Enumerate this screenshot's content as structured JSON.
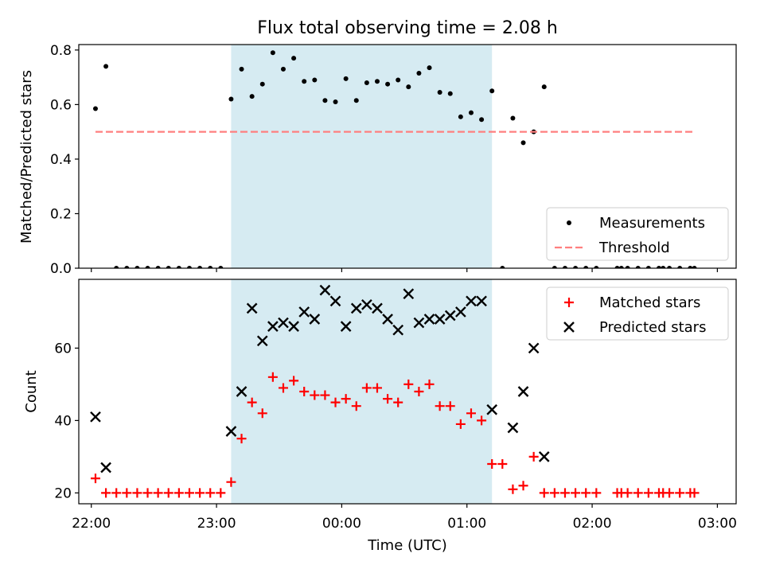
{
  "chart_data": [
    {
      "type": "scatter",
      "title": "Flux total observing time = 2.08 h",
      "xlabel": "",
      "ylabel": "Matched/Predicted stars",
      "xlim": [
        "21:54",
        "03:09"
      ],
      "ylim": [
        0,
        0.82
      ],
      "xticks": [
        "22:00",
        "23:00",
        "00:00",
        "01:00",
        "02:00",
        "03:00"
      ],
      "yticks": [
        "0.0",
        "0.2",
        "0.4",
        "0.6",
        "0.8"
      ],
      "shaded_region": {
        "start": "23:07",
        "end": "01:12",
        "color": "#add8e6"
      },
      "legend": {
        "position": "lower-right",
        "entries": [
          "Measurements",
          "Threshold"
        ]
      },
      "series": [
        {
          "name": "Measurements",
          "marker": "dot",
          "color": "#000000",
          "points": [
            [
              "22:02",
              0.585
            ],
            [
              "22:07",
              0.74
            ],
            [
              "22:12",
              0.0
            ],
            [
              "22:17",
              0.0
            ],
            [
              "22:22",
              0.0
            ],
            [
              "22:27",
              0.0
            ],
            [
              "22:32",
              0.0
            ],
            [
              "22:37",
              0.0
            ],
            [
              "22:42",
              0.0
            ],
            [
              "22:47",
              0.0
            ],
            [
              "22:52",
              0.0
            ],
            [
              "22:57",
              0.0
            ],
            [
              "23:02",
              0.0
            ],
            [
              "23:07",
              0.62
            ],
            [
              "23:12",
              0.73
            ],
            [
              "23:17",
              0.63
            ],
            [
              "23:22",
              0.675
            ],
            [
              "23:27",
              0.79
            ],
            [
              "23:32",
              0.73
            ],
            [
              "23:37",
              0.77
            ],
            [
              "23:42",
              0.685
            ],
            [
              "23:47",
              0.69
            ],
            [
              "23:52",
              0.615
            ],
            [
              "23:57",
              0.61
            ],
            [
              "00:02",
              0.695
            ],
            [
              "00:07",
              0.615
            ],
            [
              "00:12",
              0.68
            ],
            [
              "00:17",
              0.685
            ],
            [
              "00:22",
              0.675
            ],
            [
              "00:27",
              0.69
            ],
            [
              "00:32",
              0.665
            ],
            [
              "00:37",
              0.715
            ],
            [
              "00:42",
              0.735
            ],
            [
              "00:47",
              0.645
            ],
            [
              "00:52",
              0.64
            ],
            [
              "00:57",
              0.555
            ],
            [
              "01:02",
              0.57
            ],
            [
              "01:07",
              0.545
            ],
            [
              "01:12",
              0.65
            ],
            [
              "01:17",
              0.0
            ],
            [
              "01:22",
              0.55
            ],
            [
              "01:27",
              0.46
            ],
            [
              "01:32",
              0.5
            ],
            [
              "01:37",
              0.665
            ],
            [
              "01:42",
              0.0
            ],
            [
              "01:47",
              0.0
            ],
            [
              "01:52",
              0.0
            ],
            [
              "01:57",
              0.0
            ],
            [
              "02:02",
              0.0
            ],
            [
              "02:12",
              0.0
            ],
            [
              "02:14",
              0.0
            ],
            [
              "02:17",
              0.0
            ],
            [
              "02:22",
              0.0
            ],
            [
              "02:27",
              0.0
            ],
            [
              "02:32",
              0.0
            ],
            [
              "02:34",
              0.0
            ],
            [
              "02:37",
              0.0
            ],
            [
              "02:42",
              0.0
            ],
            [
              "02:47",
              0.0
            ],
            [
              "02:49",
              0.0
            ]
          ]
        },
        {
          "name": "Threshold",
          "style": "dashed",
          "color": "#ff7f7f",
          "points": [
            [
              "22:02",
              0.5
            ],
            [
              "02:49",
              0.5
            ]
          ]
        }
      ]
    },
    {
      "type": "scatter",
      "title": "",
      "xlabel": "Time (UTC)",
      "ylabel": "Count",
      "xlim": [
        "21:54",
        "03:09"
      ],
      "ylim": [
        17,
        79
      ],
      "xticks": [
        "22:00",
        "23:00",
        "00:00",
        "01:00",
        "02:00",
        "03:00"
      ],
      "yticks": [
        "20",
        "40",
        "60"
      ],
      "shaded_region": {
        "start": "23:07",
        "end": "01:12",
        "color": "#add8e6"
      },
      "legend": {
        "position": "top-right",
        "entries": [
          "Matched stars",
          "Predicted stars"
        ]
      },
      "series": [
        {
          "name": "Matched stars",
          "marker": "plus",
          "color": "#ff0000",
          "points": [
            [
              "22:02",
              24
            ],
            [
              "22:07",
              20
            ],
            [
              "22:12",
              20
            ],
            [
              "22:17",
              20
            ],
            [
              "22:22",
              20
            ],
            [
              "22:27",
              20
            ],
            [
              "22:32",
              20
            ],
            [
              "22:37",
              20
            ],
            [
              "22:42",
              20
            ],
            [
              "22:47",
              20
            ],
            [
              "22:52",
              20
            ],
            [
              "22:57",
              20
            ],
            [
              "23:02",
              20
            ],
            [
              "23:07",
              23
            ],
            [
              "23:12",
              35
            ],
            [
              "23:17",
              45
            ],
            [
              "23:22",
              42
            ],
            [
              "23:27",
              52
            ],
            [
              "23:32",
              49
            ],
            [
              "23:37",
              51
            ],
            [
              "23:42",
              48
            ],
            [
              "23:47",
              47
            ],
            [
              "23:52",
              47
            ],
            [
              "23:57",
              45
            ],
            [
              "00:02",
              46
            ],
            [
              "00:07",
              44
            ],
            [
              "00:12",
              49
            ],
            [
              "00:17",
              49
            ],
            [
              "00:22",
              46
            ],
            [
              "00:27",
              45
            ],
            [
              "00:32",
              50
            ],
            [
              "00:37",
              48
            ],
            [
              "00:42",
              50
            ],
            [
              "00:47",
              44
            ],
            [
              "00:52",
              44
            ],
            [
              "00:57",
              39
            ],
            [
              "01:02",
              42
            ],
            [
              "01:07",
              40
            ],
            [
              "01:12",
              28
            ],
            [
              "01:17",
              28
            ],
            [
              "01:22",
              21
            ],
            [
              "01:27",
              22
            ],
            [
              "01:32",
              30
            ],
            [
              "01:37",
              20
            ],
            [
              "01:42",
              20
            ],
            [
              "01:47",
              20
            ],
            [
              "01:52",
              20
            ],
            [
              "01:57",
              20
            ],
            [
              "02:02",
              20
            ],
            [
              "02:12",
              20
            ],
            [
              "02:14",
              20
            ],
            [
              "02:17",
              20
            ],
            [
              "02:22",
              20
            ],
            [
              "02:27",
              20
            ],
            [
              "02:32",
              20
            ],
            [
              "02:34",
              20
            ],
            [
              "02:37",
              20
            ],
            [
              "02:42",
              20
            ],
            [
              "02:47",
              20
            ],
            [
              "02:49",
              20
            ]
          ]
        },
        {
          "name": "Predicted stars",
          "marker": "x",
          "color": "#000000",
          "points": [
            [
              "22:02",
              41
            ],
            [
              "22:07",
              27
            ],
            [
              "23:07",
              37
            ],
            [
              "23:12",
              48
            ],
            [
              "23:17",
              71
            ],
            [
              "23:22",
              62
            ],
            [
              "23:27",
              66
            ],
            [
              "23:32",
              67
            ],
            [
              "23:37",
              66
            ],
            [
              "23:42",
              70
            ],
            [
              "23:47",
              68
            ],
            [
              "23:52",
              76
            ],
            [
              "23:57",
              73
            ],
            [
              "00:02",
              66
            ],
            [
              "00:07",
              71
            ],
            [
              "00:12",
              72
            ],
            [
              "00:17",
              71
            ],
            [
              "00:22",
              68
            ],
            [
              "00:27",
              65
            ],
            [
              "00:32",
              75
            ],
            [
              "00:37",
              67
            ],
            [
              "00:42",
              68
            ],
            [
              "00:47",
              68
            ],
            [
              "00:52",
              69
            ],
            [
              "00:57",
              70
            ],
            [
              "01:02",
              73
            ],
            [
              "01:07",
              73
            ],
            [
              "01:12",
              43
            ],
            [
              "01:22",
              38
            ],
            [
              "01:27",
              48
            ],
            [
              "01:32",
              60
            ],
            [
              "01:37",
              30
            ]
          ]
        }
      ]
    }
  ]
}
